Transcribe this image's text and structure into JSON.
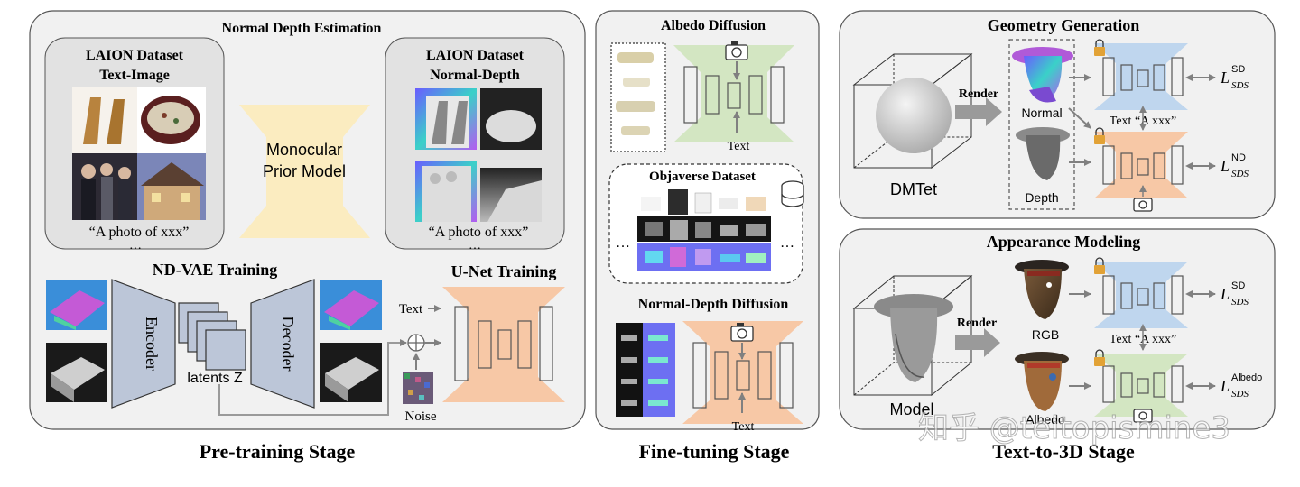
{
  "pretrain": {
    "stage_label": "Pre-training Stage",
    "top_title": "Normal Depth Estimation",
    "laion_ti_line1": "LAION Dataset",
    "laion_ti_line2": "Text-Image",
    "laion_nd_line1": "LAION Dataset",
    "laion_nd_line2": "Normal-Depth",
    "caption": "“A photo of xxx”",
    "ellipsis": "…",
    "prior_line1": "Monocular",
    "prior_line2": "Prior Model",
    "ndvae_title": "ND-VAE Training",
    "encoder": "Encoder",
    "decoder": "Decoder",
    "latents": "latents Z",
    "unet_title": "U-Net Training",
    "text": "Text",
    "noise": "Noise"
  },
  "finetune": {
    "stage_label": "Fine-tuning Stage",
    "albedo_title": "Albedo Diffusion",
    "text1": "Text",
    "objaverse_title": "Objaverse Dataset",
    "dots": "…",
    "nd_title": "Normal-Depth Diffusion",
    "text2": "Text"
  },
  "text3d": {
    "stage_label": "Text-to-3D Stage",
    "geom_title": "Geometry Generation",
    "render1": "Render",
    "normal": "Normal",
    "depth": "Depth",
    "dmtet": "DMTet",
    "text_axxx_1": "Text “A xxx”",
    "loss_L": "L",
    "loss_sds": "SDS",
    "sup_sd": "SD",
    "sup_nd": "ND",
    "appear_title": "Appearance Modeling",
    "render2": "Render",
    "rgb": "RGB",
    "albedo": "Albedo",
    "model": "Model",
    "text_axxx_2": "Text “A xxx”",
    "sup_albedo": "Albedo"
  },
  "watermark": "知乎 @teitopismine3",
  "colors": {
    "panel_bg": "#f1f1f1",
    "sub_bg": "#e2e2e2",
    "yellow": "#fbecc0",
    "orange": "#f7c8a6",
    "green": "#d3e6c2",
    "blue": "#bfd6ee",
    "slate": "#bcc6d8",
    "arrow": "#9a9a9a"
  }
}
